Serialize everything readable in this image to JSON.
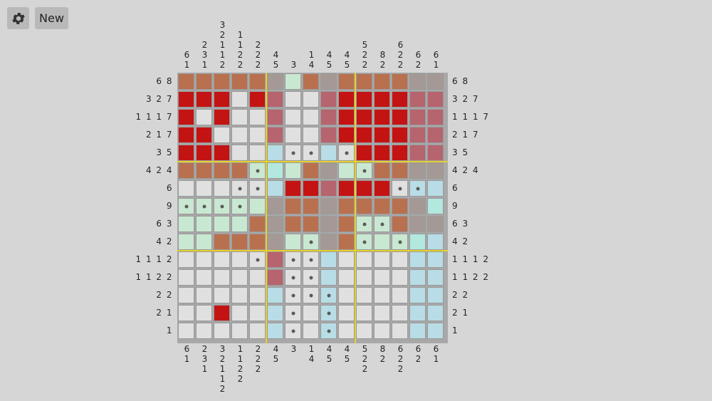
{
  "toolbar": {
    "settings_icon": "gear-icon",
    "new_label": "New"
  },
  "puzzle": {
    "size": 15,
    "colors": {
      "W": "#e0e0e0",
      "R": "#c41313",
      "C": "#b9704f",
      "G": "#a49994",
      "P": "#b6646e",
      "M": "#c9e8d2",
      "B": "#b8dde6",
      "T": "#b3e8df"
    },
    "grid": [
      "CCCCCGMCGCCCCGG",
      "RRRWRPWWPRRRRPP",
      "RWRWWPWWPRRRRPP",
      "RRWWWPWWPRRRRPP",
      "RRRWWBWWBWRRRPP",
      "CCCCMTMCGMMCCGG",
      "WWWWWBRRPRRRWBB",
      "MMMMMGCCGCCCCGT",
      "MMMMCGCCGCMMCGG",
      "MMCCCGMMGCMMMTB",
      "WWWWWPWWBWWWWBB",
      "WWWWWPWWBWWWWBB",
      "WWWWWBWWBWWWWBB",
      "WWRWWBWWBWWWWBB",
      "WWWWWBWWBWWWWBB"
    ],
    "dots": [
      "...............",
      "...............",
      "...............",
      "...............",
      "......##.#.....",
      "....#.....#....",
      "...##.......##.",
      "####...........",
      "..........##...",
      ".......#..#.#..",
      "....#.##.......",
      "......##.......",
      "......###......",
      "......#.#......",
      "......#.#......"
    ],
    "row_clues": [
      "68",
      "327",
      "1117",
      "217",
      "35",
      "424",
      "6",
      "9",
      "63",
      "42",
      "1112",
      "1122",
      "22",
      "21",
      "1"
    ],
    "col_clues_top": [
      [
        "6",
        "1"
      ],
      [
        "2",
        "3",
        "1"
      ],
      [
        "3",
        "2",
        "1",
        "1",
        "2"
      ],
      [
        "1",
        "1",
        "2",
        "2"
      ],
      [
        "2",
        "2",
        "2"
      ],
      [
        "4",
        "5"
      ],
      [
        "3"
      ],
      [
        "1",
        "4"
      ],
      [
        "4",
        "5"
      ],
      [
        "4",
        "5"
      ],
      [
        "5",
        "2",
        "2"
      ],
      [
        "8",
        "2"
      ],
      [
        "6",
        "2",
        "2"
      ],
      [
        "6",
        "2"
      ],
      [
        "6",
        "1"
      ]
    ],
    "col_clues_bottom": [
      [
        "6",
        "1"
      ],
      [
        "2",
        "3",
        "1"
      ],
      [
        "3",
        "2",
        "1",
        "1",
        "2"
      ],
      [
        "1",
        "1",
        "2",
        "2"
      ],
      [
        "2",
        "2",
        "2"
      ],
      [
        "4",
        "5"
      ],
      [
        "3"
      ],
      [
        "1",
        "4"
      ],
      [
        "4",
        "5"
      ],
      [
        "4",
        "5"
      ],
      [
        "5",
        "2",
        "2"
      ],
      [
        "8",
        "2"
      ],
      [
        "6",
        "2",
        "2"
      ],
      [
        "6",
        "2"
      ],
      [
        "6",
        "1"
      ]
    ]
  }
}
